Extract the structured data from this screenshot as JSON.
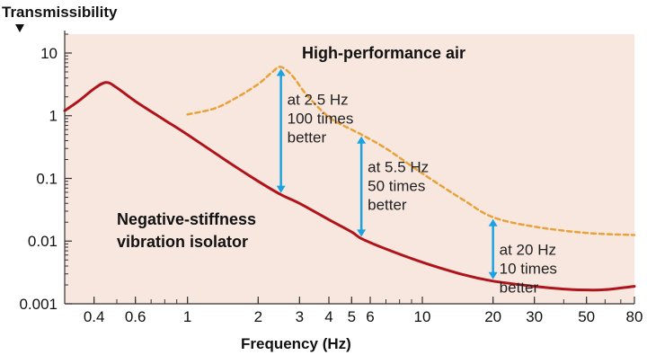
{
  "colors": {
    "plot_background": "#f7e7df",
    "isolator_line": "#b0141b",
    "air_line": "#e8a23a",
    "arrow": "#1aa3e0"
  },
  "chart_data": {
    "type": "line",
    "title": "",
    "ylabel": "Transmissibility",
    "xlabel": "Frequency (Hz)",
    "xscale": "log",
    "yscale": "log",
    "xlim": [
      0.3,
      80
    ],
    "ylim": [
      0.001,
      20
    ],
    "grid": false,
    "x_ticks": [
      {
        "value": 0.4,
        "label": "0.4"
      },
      {
        "value": 0.6,
        "label": "0.6"
      },
      {
        "value": 1,
        "label": "1"
      },
      {
        "value": 2,
        "label": "2"
      },
      {
        "value": 3,
        "label": "3"
      },
      {
        "value": 4,
        "label": "4"
      },
      {
        "value": 5,
        "label": "5"
      },
      {
        "value": 6,
        "label": "6"
      },
      {
        "value": 10,
        "label": "10"
      },
      {
        "value": 20,
        "label": "20"
      },
      {
        "value": 30,
        "label": "30"
      },
      {
        "value": 50,
        "label": "50"
      },
      {
        "value": 80,
        "label": "80"
      }
    ],
    "y_ticks": [
      {
        "value": 10,
        "label": "10"
      },
      {
        "value": 1,
        "label": "1"
      },
      {
        "value": 0.1,
        "label": "0.1"
      },
      {
        "value": 0.01,
        "label": "0.01"
      },
      {
        "value": 0.001,
        "label": "0.001"
      }
    ],
    "series": [
      {
        "name": "Negative-stiffness vibration isolator",
        "style": "solid",
        "x": [
          0.3,
          0.35,
          0.4,
          0.45,
          0.5,
          0.6,
          0.8,
          1,
          1.5,
          2,
          2.5,
          3,
          4,
          5,
          5.5,
          7,
          10,
          15,
          20,
          30,
          40,
          50,
          60,
          80
        ],
        "y": [
          1.2,
          1.8,
          2.7,
          3.4,
          2.8,
          1.7,
          0.85,
          0.5,
          0.18,
          0.09,
          0.055,
          0.04,
          0.022,
          0.014,
          0.011,
          0.0075,
          0.0046,
          0.0029,
          0.0023,
          0.0019,
          0.00172,
          0.00166,
          0.00168,
          0.0019
        ]
      },
      {
        "name": "High-performance air",
        "style": "dashed",
        "x": [
          1,
          1.3,
          1.6,
          2,
          2.3,
          2.5,
          2.8,
          3.2,
          4,
          5,
          5.5,
          7,
          10,
          15,
          20,
          30,
          50,
          80
        ],
        "y": [
          1.05,
          1.3,
          1.9,
          3.2,
          5.0,
          6.0,
          4.3,
          2.2,
          0.95,
          0.6,
          0.5,
          0.3,
          0.12,
          0.045,
          0.024,
          0.017,
          0.0135,
          0.0125
        ]
      }
    ],
    "annotations": [
      {
        "x": 2.5,
        "y_from": 0.055,
        "y_to": 6.0,
        "lines": [
          "at 2.5 Hz",
          "100 times",
          "better"
        ]
      },
      {
        "x": 5.5,
        "y_from": 0.011,
        "y_to": 0.5,
        "lines": [
          "at 5.5 Hz",
          "50 times",
          "better"
        ]
      },
      {
        "x": 20,
        "y_from": 0.0023,
        "y_to": 0.024,
        "lines": [
          "at 20 Hz",
          "10 times",
          "better"
        ]
      }
    ],
    "series_labels": {
      "air": "High-performance air",
      "isolator_line1": "Negative-stiffness",
      "isolator_line2": "vibration isolator"
    }
  }
}
